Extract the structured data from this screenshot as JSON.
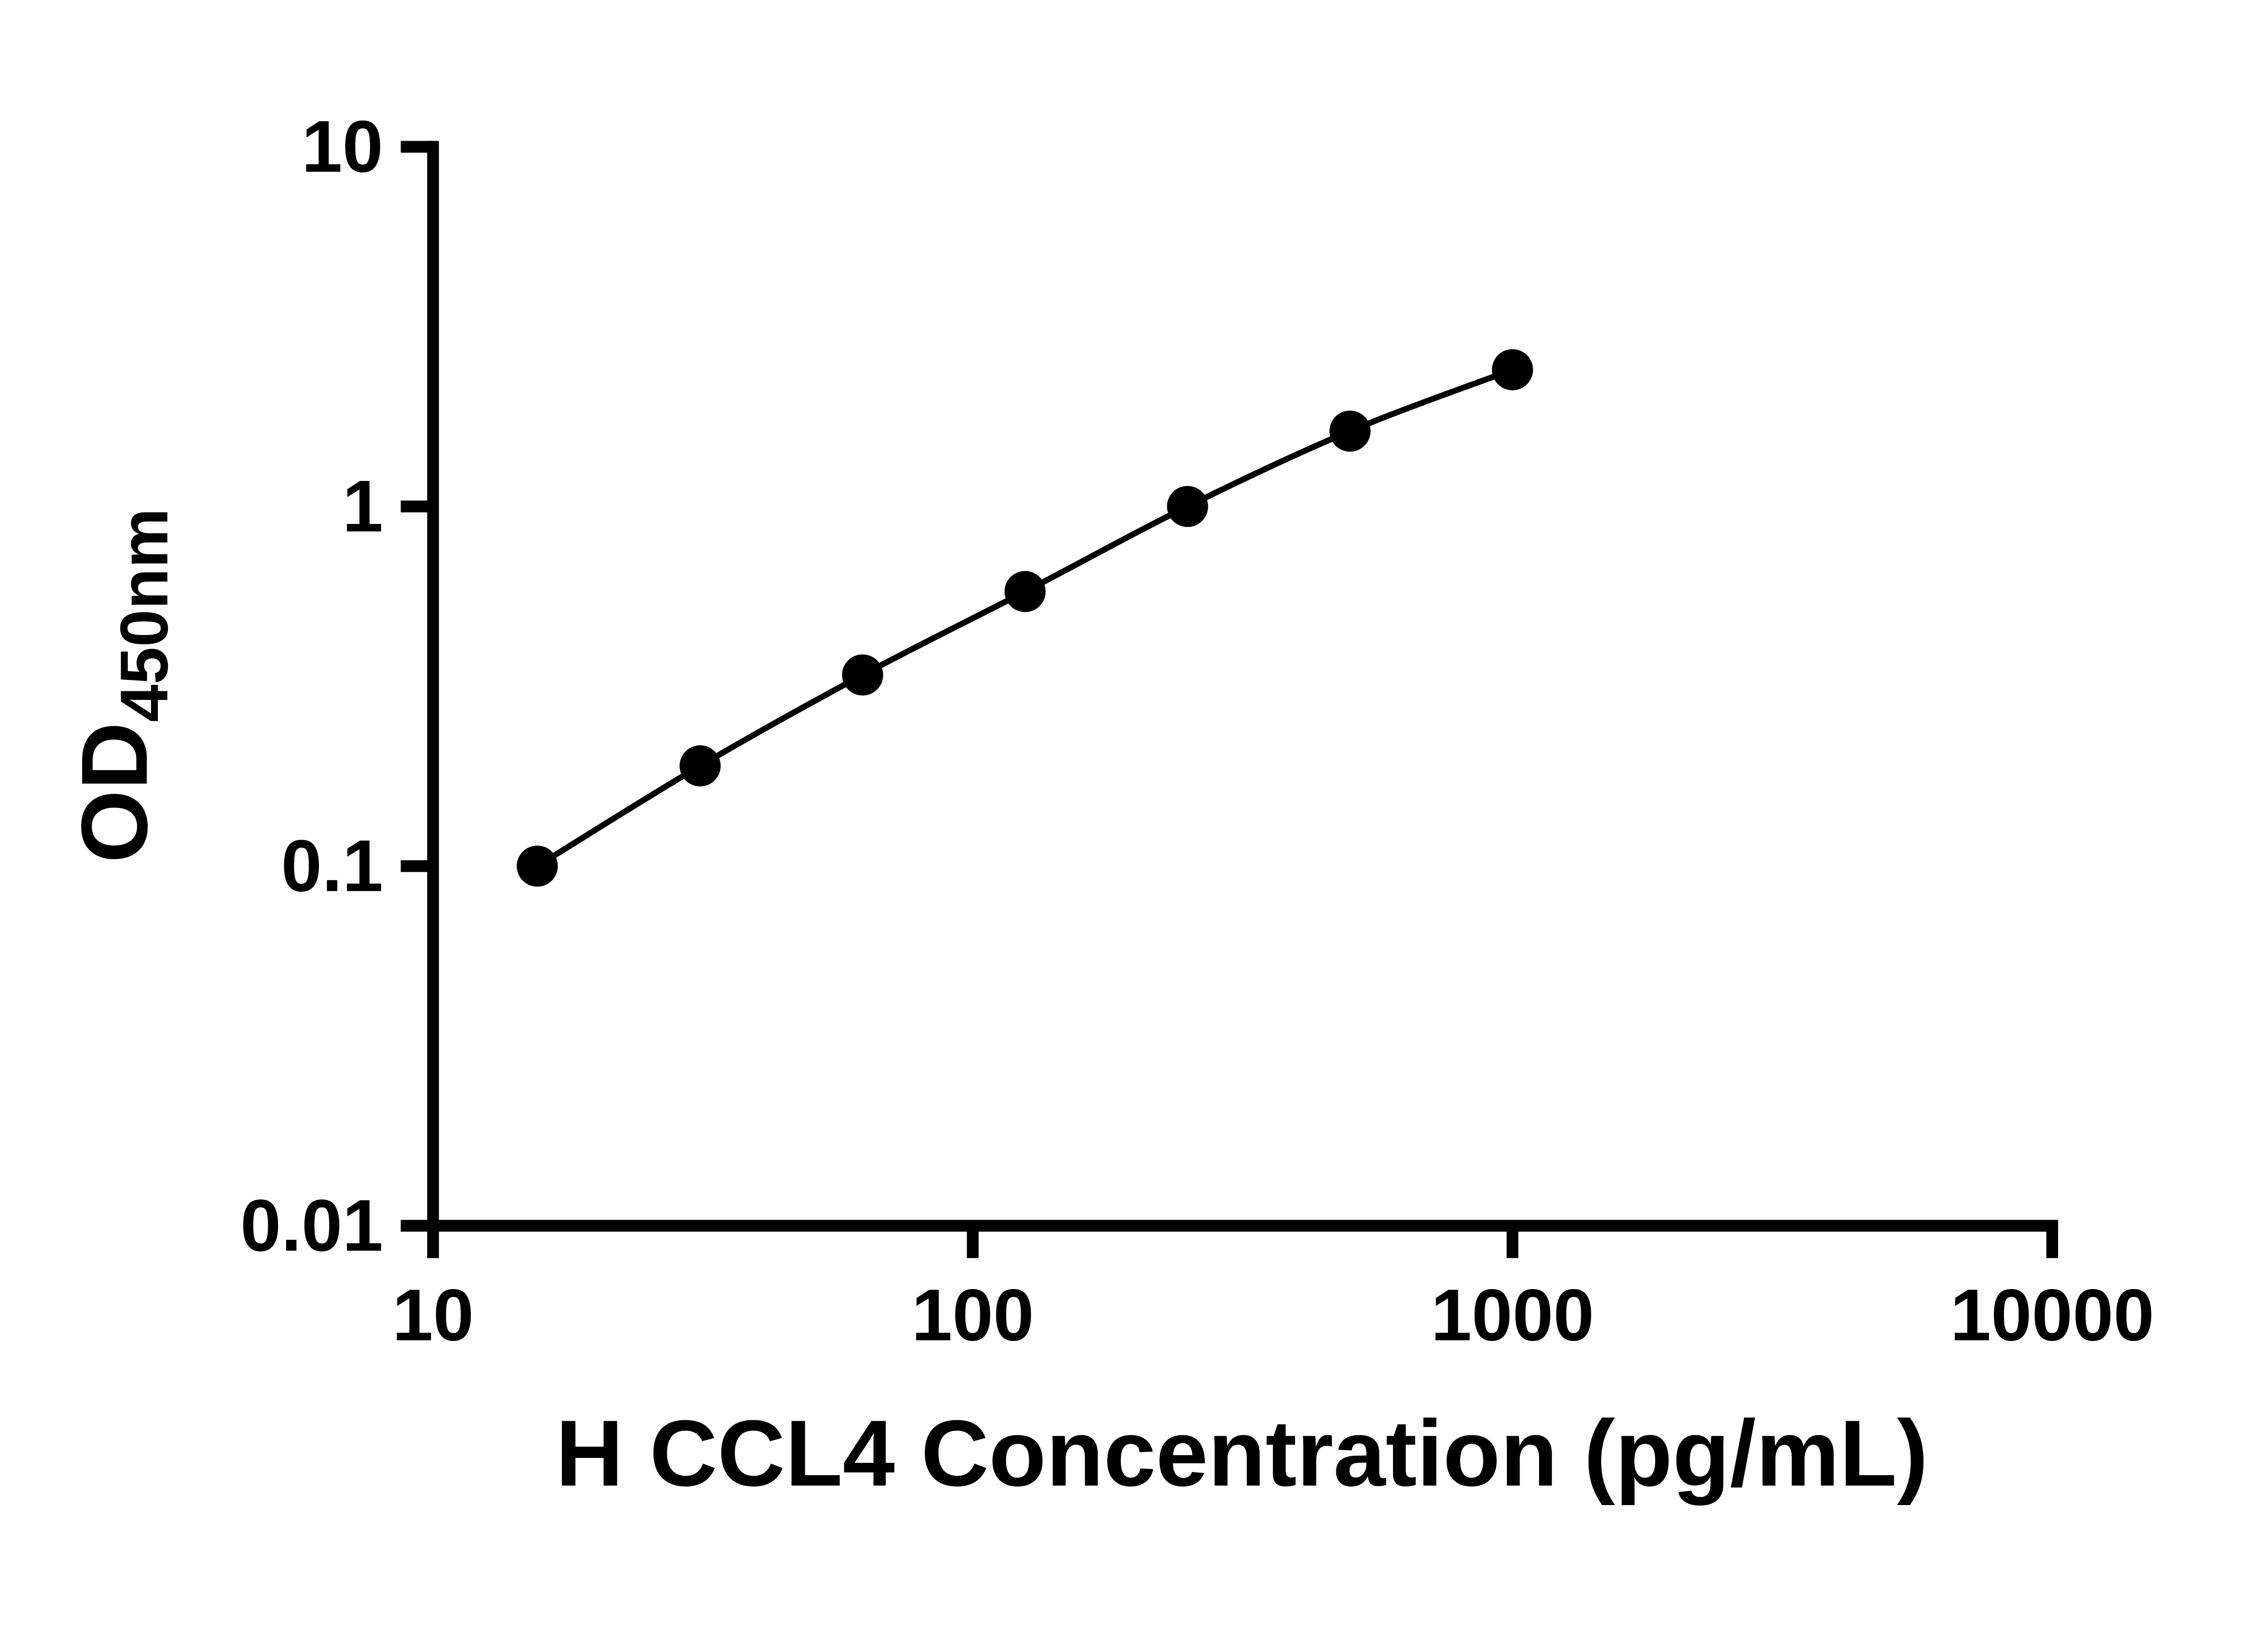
{
  "chart_data": {
    "type": "scatter",
    "subtype": "line-with-markers",
    "title": "",
    "xlabel": "H CCL4 Concentration (pg/mL)",
    "ylabel_main": "OD",
    "ylabel_sub": "450nm",
    "x_scale": "log",
    "y_scale": "log",
    "xlim": [
      10,
      10000
    ],
    "ylim": [
      0.01,
      10
    ],
    "x_ticks": [
      10,
      100,
      1000,
      10000
    ],
    "x_tick_labels": [
      "10",
      "100",
      "1000",
      "10000"
    ],
    "y_ticks": [
      0.01,
      0.1,
      1,
      10
    ],
    "y_tick_labels": [
      "0.01",
      "0.1",
      "1",
      "10"
    ],
    "x": [
      15.6,
      31.25,
      62.5,
      125,
      250,
      500,
      1000
    ],
    "y": [
      0.1,
      0.19,
      0.34,
      0.58,
      1.0,
      1.62,
      2.4
    ],
    "grid": false,
    "legend": "none",
    "line_color": "#000000",
    "marker_color": "#000000",
    "axis_color": "#000000",
    "background": "#ffffff"
  }
}
